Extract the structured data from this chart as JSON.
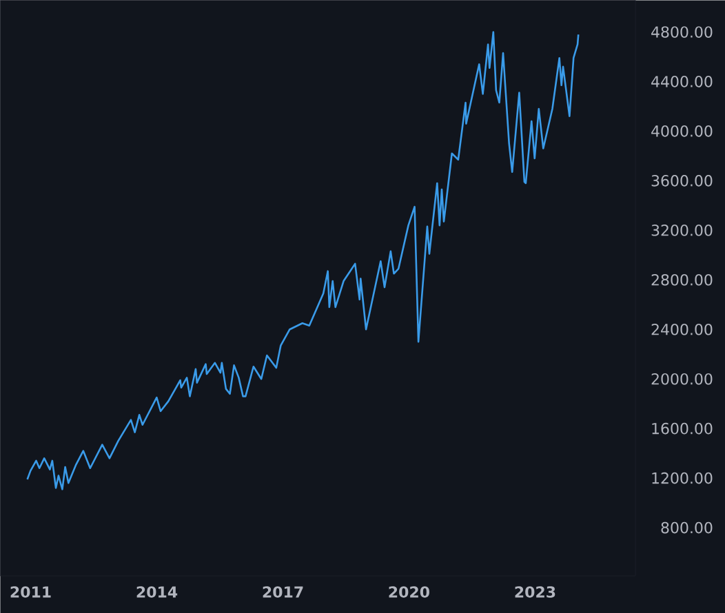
{
  "chart_data": {
    "type": "line",
    "x": [
      "2010-12-03",
      "2010-12-31",
      "2011-02-18",
      "2011-03-18",
      "2011-04-29",
      "2011-06-17",
      "2011-07-08",
      "2011-08-08",
      "2011-08-31",
      "2011-10-03",
      "2011-10-28",
      "2011-11-25",
      "2012-01-31",
      "2012-04-02",
      "2012-06-01",
      "2012-09-14",
      "2012-11-16",
      "2013-01-31",
      "2013-05-21",
      "2013-06-24",
      "2013-08-02",
      "2013-08-30",
      "2013-12-31",
      "2014-02-03",
      "2014-04-11",
      "2014-07-24",
      "2014-08-01",
      "2014-09-19",
      "2014-10-15",
      "2014-12-05",
      "2014-12-16",
      "2015-03-02",
      "2015-03-11",
      "2015-05-21",
      "2015-07-08",
      "2015-07-20",
      "2015-08-25",
      "2015-09-28",
      "2015-11-03",
      "2015-12-14",
      "2016-01-20",
      "2016-02-11",
      "2016-04-20",
      "2016-06-27",
      "2016-08-15",
      "2016-11-04",
      "2016-12-13",
      "2017-03-01",
      "2017-06-19",
      "2017-08-18",
      "2017-12-18",
      "2018-01-26",
      "2018-02-08",
      "2018-03-09",
      "2018-04-02",
      "2018-06-12",
      "2018-09-20",
      "2018-10-29",
      "2018-11-07",
      "2018-12-24",
      "2019-04-30",
      "2019-06-03",
      "2019-07-26",
      "2019-08-23",
      "2019-10-02",
      "2019-12-27",
      "2020-02-19",
      "2020-03-23",
      "2020-06-08",
      "2020-06-26",
      "2020-09-02",
      "2020-09-23",
      "2020-10-12",
      "2020-10-30",
      "2021-01-08",
      "2021-03-04",
      "2021-05-07",
      "2021-05-12",
      "2021-09-02",
      "2021-10-04",
      "2021-11-18",
      "2021-12-01",
      "2022-01-03",
      "2022-01-27",
      "2022-02-24",
      "2022-03-29",
      "2022-05-20",
      "2022-06-16",
      "2022-08-16",
      "2022-09-30",
      "2022-10-12",
      "2022-12-01",
      "2022-12-28",
      "2023-02-02",
      "2023-03-13",
      "2023-05-31",
      "2023-07-31",
      "2023-08-18",
      "2023-09-01",
      "2023-10-27",
      "2023-12-01",
      "2024-01-05",
      "2024-01-12"
    ],
    "series": [
      {
        "color": "#3a9be9",
        "values": [
          1190,
          1260,
          1340,
          1280,
          1360,
          1270,
          1340,
          1120,
          1220,
          1110,
          1290,
          1160,
          1310,
          1420,
          1280,
          1470,
          1360,
          1500,
          1670,
          1570,
          1710,
          1630,
          1850,
          1740,
          1820,
          1990,
          1930,
          2010,
          1860,
          2080,
          1970,
          2120,
          2040,
          2130,
          2050,
          2130,
          1920,
          1880,
          2110,
          2010,
          1860,
          1860,
          2100,
          2000,
          2190,
          2090,
          2270,
          2400,
          2450,
          2430,
          2690,
          2870,
          2580,
          2790,
          2580,
          2790,
          2930,
          2640,
          2810,
          2400,
          2950,
          2740,
          3030,
          2850,
          2890,
          3240,
          3390,
          2300,
          3230,
          3010,
          3580,
          3240,
          3530,
          3270,
          3820,
          3770,
          4230,
          4060,
          4540,
          4300,
          4700,
          4510,
          4800,
          4330,
          4230,
          4630,
          3900,
          3670,
          4310,
          3590,
          3580,
          4080,
          3780,
          4180,
          3860,
          4180,
          4590,
          4370,
          4520,
          4120,
          4590,
          4700,
          4780
        ]
      }
    ],
    "xlim": [
      "2010-04-12",
      "2025-05-22"
    ],
    "xticks": [
      {
        "value": "2011-01-01",
        "label": "2011"
      },
      {
        "value": "2014-01-01",
        "label": "2014"
      },
      {
        "value": "2017-01-01",
        "label": "2017"
      },
      {
        "value": "2020-01-01",
        "label": "2020"
      },
      {
        "value": "2023-01-01",
        "label": "2023"
      }
    ],
    "ylim": [
      411,
      5056
    ],
    "yticks": [
      {
        "value": 800,
        "label": "800.00"
      },
      {
        "value": 1200,
        "label": "1200.00"
      },
      {
        "value": 1600,
        "label": "1600.00"
      },
      {
        "value": 2000,
        "label": "2000.00"
      },
      {
        "value": 2400,
        "label": "2400.00"
      },
      {
        "value": 2800,
        "label": "2800.00"
      },
      {
        "value": 3200,
        "label": "3200.00"
      },
      {
        "value": 3600,
        "label": "3600.00"
      },
      {
        "value": 4000,
        "label": "4000.00"
      },
      {
        "value": 4400,
        "label": "4400.00"
      },
      {
        "value": 4800,
        "label": "4800.00"
      }
    ],
    "grid": false
  }
}
